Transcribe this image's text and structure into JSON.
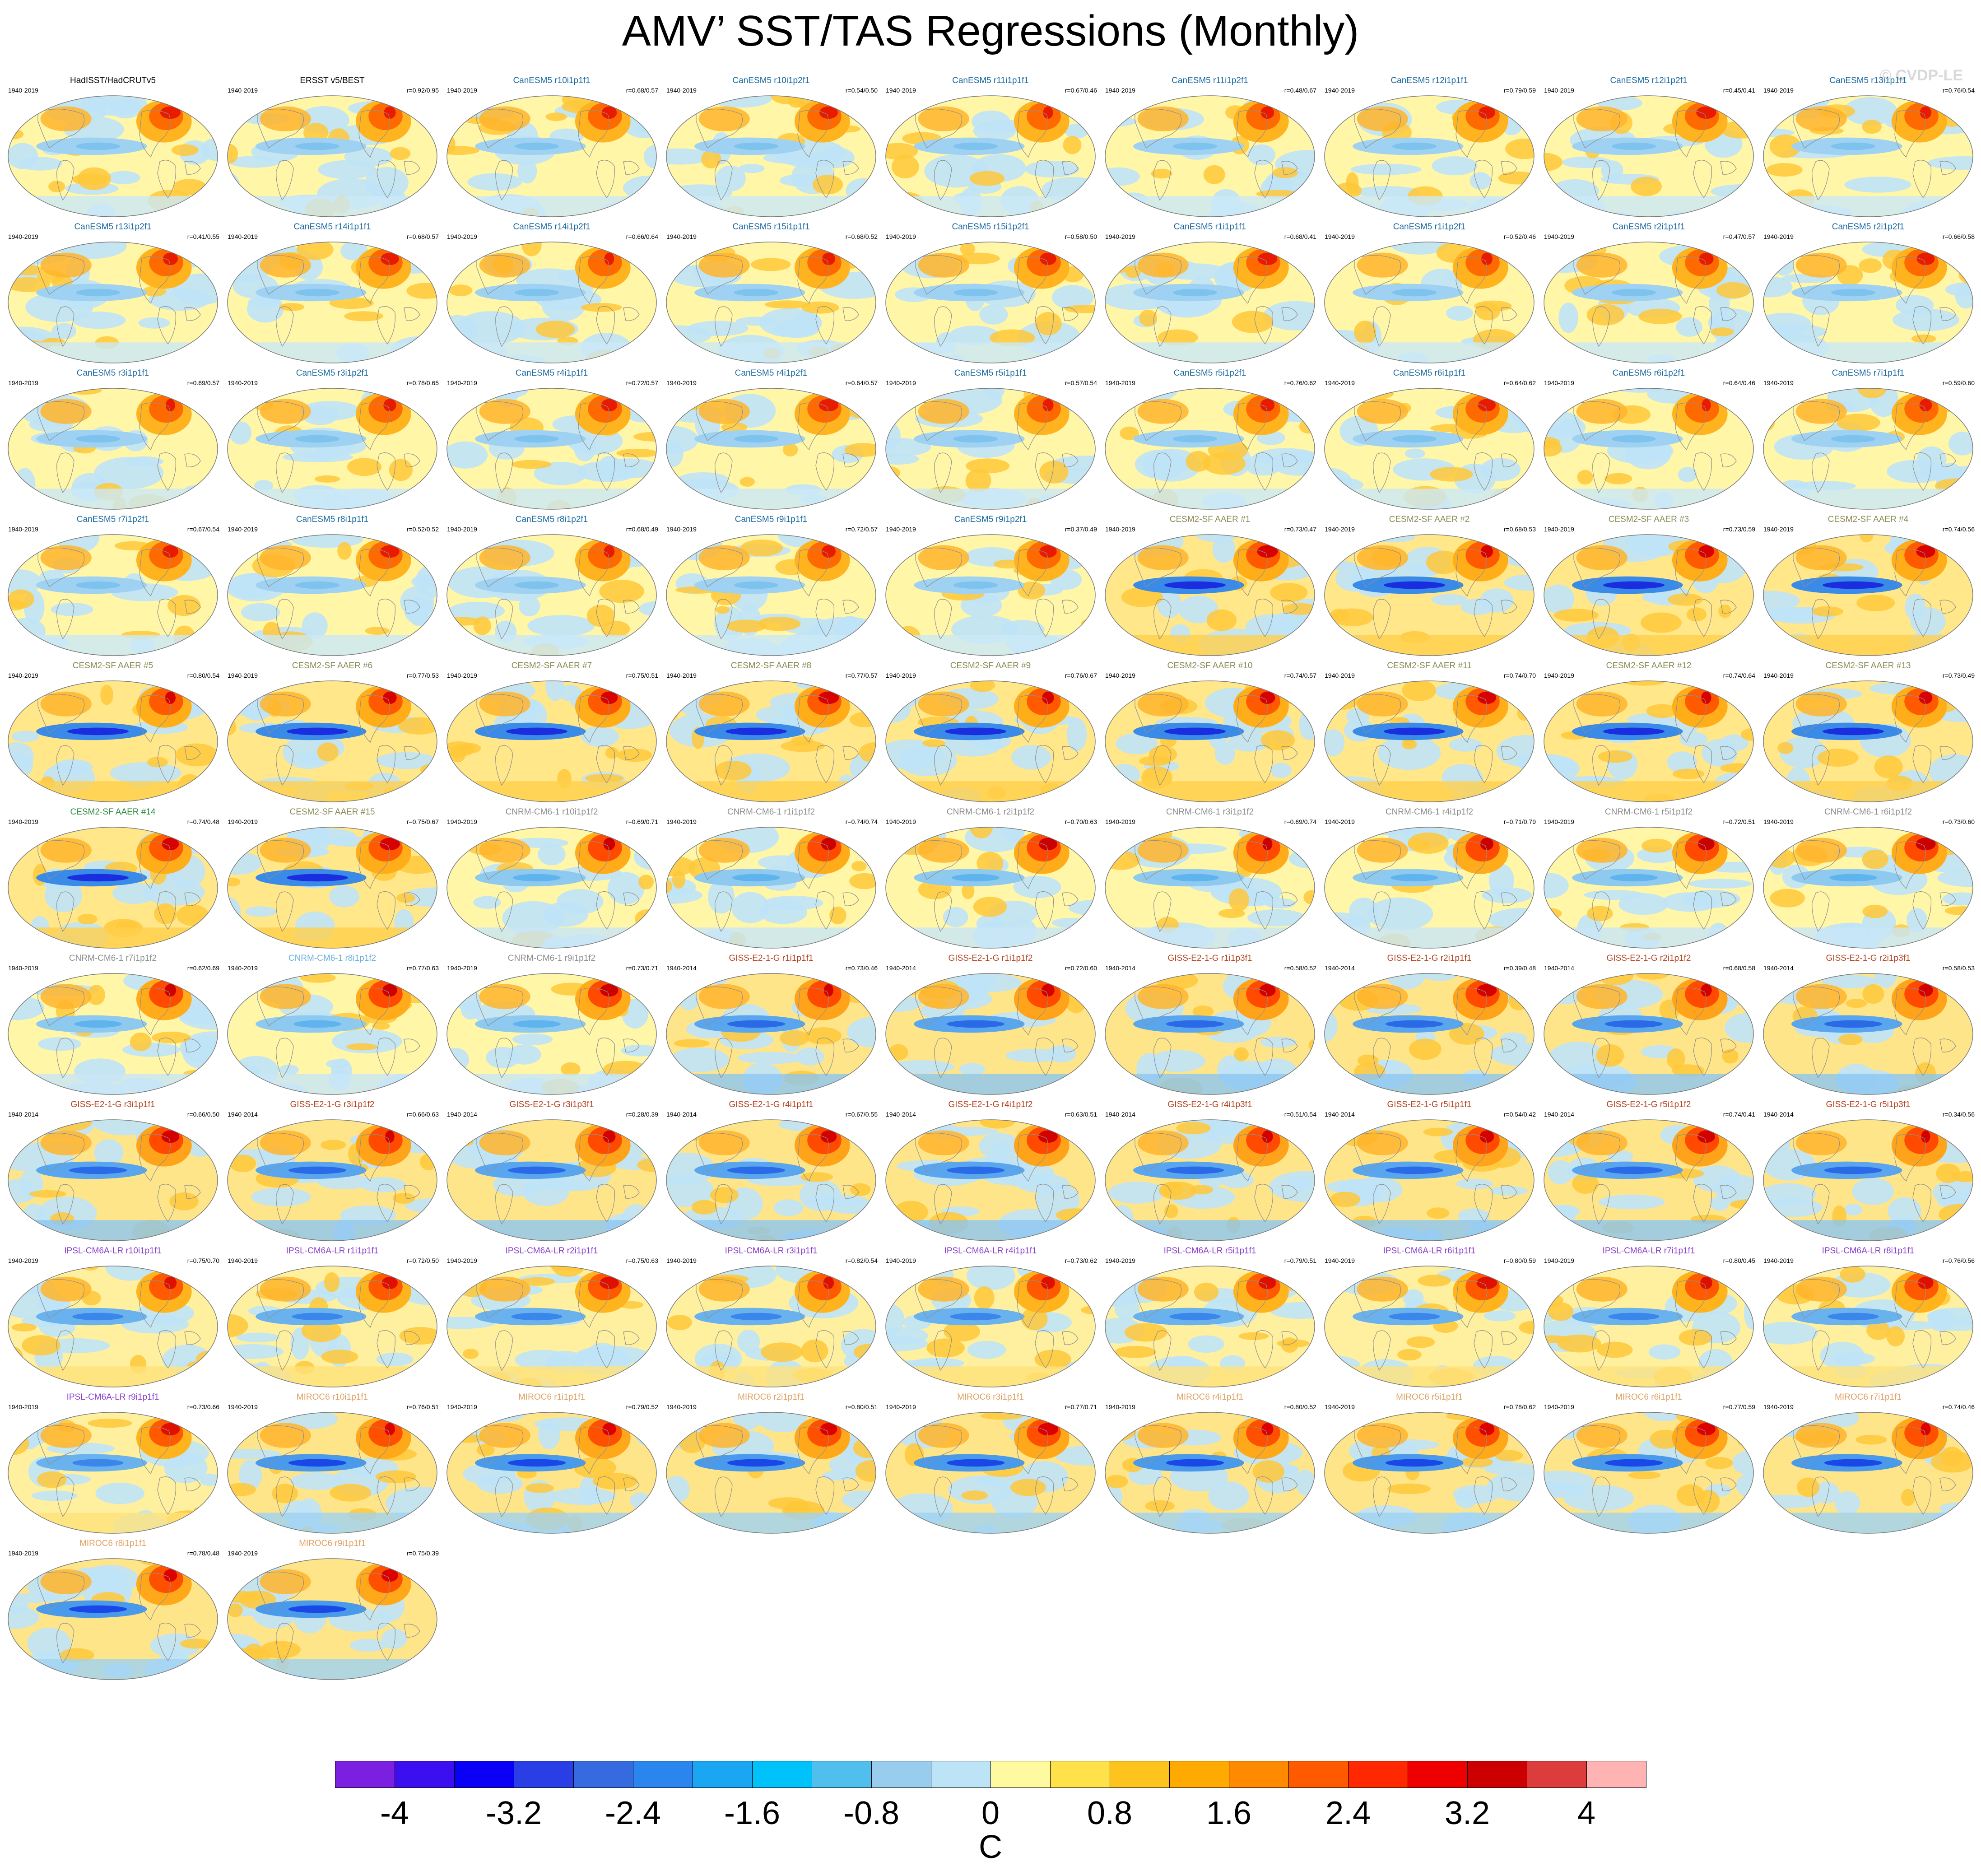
{
  "title": "AMV’ SST/TAS Regressions (Monthly)",
  "credit": "© CVDP-LE",
  "chart_data": {
    "type": "heatmap",
    "map_projection": "global-ellipse",
    "units": "C",
    "colorbar": {
      "colors": [
        "#7b1fe0",
        "#3c0ff0",
        "#0a00f5",
        "#2a3ee6",
        "#356ae0",
        "#2a86ee",
        "#1aa6f2",
        "#00c2fb",
        "#50bfee",
        "#98cdee",
        "#bde3f7",
        "#fffaa0",
        "#ffe14a",
        "#ffc31e",
        "#ffaa00",
        "#ff8a00",
        "#ff5a00",
        "#ff2800",
        "#ee0000",
        "#cc0000",
        "#dd3c3c",
        "#ffb3b3"
      ],
      "tick_labels": [
        "-4",
        "-3.2",
        "-2.4",
        "-1.6",
        "-0.8",
        "0",
        "0.8",
        "1.6",
        "2.4",
        "3.2",
        "4"
      ],
      "range": [
        -4.4,
        4.4
      ]
    },
    "panels": [
      {
        "name": "HadISST/HadCRUTv5",
        "years": "1940-2019",
        "corr": "",
        "color": "#000000",
        "style": "can"
      },
      {
        "name": "ERSST v5/BEST",
        "years": "1940-2019",
        "corr": "r=0.92/0.95",
        "color": "#000000",
        "style": "can"
      },
      {
        "name": "CanESM5 r10i1p1f1",
        "years": "1940-2019",
        "corr": "r=0.68/0.57",
        "color": "#1a6aa0",
        "style": "can"
      },
      {
        "name": "CanESM5 r10i1p2f1",
        "years": "1940-2019",
        "corr": "r=0.54/0.50",
        "color": "#1a6aa0",
        "style": "can"
      },
      {
        "name": "CanESM5 r11i1p1f1",
        "years": "1940-2019",
        "corr": "r=0.67/0.46",
        "color": "#1a6aa0",
        "style": "can"
      },
      {
        "name": "CanESM5 r11i1p2f1",
        "years": "1940-2019",
        "corr": "r=0.48/0.67",
        "color": "#1a6aa0",
        "style": "can"
      },
      {
        "name": "CanESM5 r12i1p1f1",
        "years": "1940-2019",
        "corr": "r=0.79/0.59",
        "color": "#1a6aa0",
        "style": "can"
      },
      {
        "name": "CanESM5 r12i1p2f1",
        "years": "1940-2019",
        "corr": "r=0.45/0.41",
        "color": "#1a6aa0",
        "style": "can"
      },
      {
        "name": "CanESM5 r13i1p1f1",
        "years": "1940-2019",
        "corr": "r=0.76/0.54",
        "color": "#1a6aa0",
        "style": "can"
      },
      {
        "name": "CanESM5 r13i1p2f1",
        "years": "1940-2019",
        "corr": "r=0.41/0.55",
        "color": "#1a6aa0",
        "style": "can"
      },
      {
        "name": "CanESM5 r14i1p1f1",
        "years": "1940-2019",
        "corr": "r=0.68/0.57",
        "color": "#1a6aa0",
        "style": "can"
      },
      {
        "name": "CanESM5 r14i1p2f1",
        "years": "1940-2019",
        "corr": "r=0.66/0.64",
        "color": "#1a6aa0",
        "style": "can"
      },
      {
        "name": "CanESM5 r15i1p1f1",
        "years": "1940-2019",
        "corr": "r=0.68/0.52",
        "color": "#1a6aa0",
        "style": "can"
      },
      {
        "name": "CanESM5 r15i1p2f1",
        "years": "1940-2019",
        "corr": "r=0.58/0.50",
        "color": "#1a6aa0",
        "style": "can"
      },
      {
        "name": "CanESM5 r1i1p1f1",
        "years": "1940-2019",
        "corr": "r=0.68/0.41",
        "color": "#1a6aa0",
        "style": "can"
      },
      {
        "name": "CanESM5 r1i1p2f1",
        "years": "1940-2019",
        "corr": "r=0.52/0.46",
        "color": "#1a6aa0",
        "style": "can"
      },
      {
        "name": "CanESM5 r2i1p1f1",
        "years": "1940-2019",
        "corr": "r=0.47/0.57",
        "color": "#1a6aa0",
        "style": "can"
      },
      {
        "name": "CanESM5 r2i1p2f1",
        "years": "1940-2019",
        "corr": "r=0.66/0.58",
        "color": "#1a6aa0",
        "style": "can"
      },
      {
        "name": "CanESM5 r3i1p1f1",
        "years": "1940-2019",
        "corr": "r=0.69/0.57",
        "color": "#1a6aa0",
        "style": "can"
      },
      {
        "name": "CanESM5 r3i1p2f1",
        "years": "1940-2019",
        "corr": "r=0.78/0.65",
        "color": "#1a6aa0",
        "style": "can"
      },
      {
        "name": "CanESM5 r4i1p1f1",
        "years": "1940-2019",
        "corr": "r=0.72/0.57",
        "color": "#1a6aa0",
        "style": "can"
      },
      {
        "name": "CanESM5 r4i1p2f1",
        "years": "1940-2019",
        "corr": "r=0.64/0.57",
        "color": "#1a6aa0",
        "style": "can"
      },
      {
        "name": "CanESM5 r5i1p1f1",
        "years": "1940-2019",
        "corr": "r=0.57/0.54",
        "color": "#1a6aa0",
        "style": "can"
      },
      {
        "name": "CanESM5 r5i1p2f1",
        "years": "1940-2019",
        "corr": "r=0.76/0.62",
        "color": "#1a6aa0",
        "style": "can"
      },
      {
        "name": "CanESM5 r6i1p1f1",
        "years": "1940-2019",
        "corr": "r=0.64/0.62",
        "color": "#1a6aa0",
        "style": "can"
      },
      {
        "name": "CanESM5 r6i1p2f1",
        "years": "1940-2019",
        "corr": "r=0.64/0.46",
        "color": "#1a6aa0",
        "style": "can"
      },
      {
        "name": "CanESM5 r7i1p1f1",
        "years": "1940-2019",
        "corr": "r=0.59/0.60",
        "color": "#1a6aa0",
        "style": "can"
      },
      {
        "name": "CanESM5 r7i1p2f1",
        "years": "1940-2019",
        "corr": "r=0.67/0.54",
        "color": "#1a6aa0",
        "style": "can"
      },
      {
        "name": "CanESM5 r8i1p1f1",
        "years": "1940-2019",
        "corr": "r=0.52/0.52",
        "color": "#1a6aa0",
        "style": "can"
      },
      {
        "name": "CanESM5 r8i1p2f1",
        "years": "1940-2019",
        "corr": "r=0.68/0.49",
        "color": "#1a6aa0",
        "style": "can"
      },
      {
        "name": "CanESM5 r9i1p1f1",
        "years": "1940-2019",
        "corr": "r=0.72/0.57",
        "color": "#1a6aa0",
        "style": "can"
      },
      {
        "name": "CanESM5 r9i1p2f1",
        "years": "1940-2019",
        "corr": "r=0.37/0.49",
        "color": "#1a6aa0",
        "style": "can"
      },
      {
        "name": "CESM2-SF AAER #1",
        "years": "1940-2019",
        "corr": "r=0.73/0.47",
        "color": "#8a8a55",
        "style": "cesm"
      },
      {
        "name": "CESM2-SF AAER #2",
        "years": "1940-2019",
        "corr": "r=0.68/0.53",
        "color": "#8a8a55",
        "style": "cesm"
      },
      {
        "name": "CESM2-SF AAER #3",
        "years": "1940-2019",
        "corr": "r=0.73/0.59",
        "color": "#8a8a55",
        "style": "cesm"
      },
      {
        "name": "CESM2-SF AAER #4",
        "years": "1940-2019",
        "corr": "r=0.74/0.56",
        "color": "#8a8a55",
        "style": "cesm"
      },
      {
        "name": "CESM2-SF AAER #5",
        "years": "1940-2019",
        "corr": "r=0.80/0.54",
        "color": "#8a8a55",
        "style": "cesm"
      },
      {
        "name": "CESM2-SF AAER #6",
        "years": "1940-2019",
        "corr": "r=0.77/0.53",
        "color": "#8a8a55",
        "style": "cesm"
      },
      {
        "name": "CESM2-SF AAER #7",
        "years": "1940-2019",
        "corr": "r=0.75/0.51",
        "color": "#8a8a55",
        "style": "cesm"
      },
      {
        "name": "CESM2-SF AAER #8",
        "years": "1940-2019",
        "corr": "r=0.77/0.57",
        "color": "#8a8a55",
        "style": "cesm"
      },
      {
        "name": "CESM2-SF AAER #9",
        "years": "1940-2019",
        "corr": "r=0.76/0.67",
        "color": "#8a8a55",
        "style": "cesm"
      },
      {
        "name": "CESM2-SF AAER #10",
        "years": "1940-2019",
        "corr": "r=0.74/0.57",
        "color": "#8a8a55",
        "style": "cesm"
      },
      {
        "name": "CESM2-SF AAER #11",
        "years": "1940-2019",
        "corr": "r=0.74/0.70",
        "color": "#8a8a55",
        "style": "cesm"
      },
      {
        "name": "CESM2-SF AAER #12",
        "years": "1940-2019",
        "corr": "r=0.74/0.64",
        "color": "#8a8a55",
        "style": "cesm"
      },
      {
        "name": "CESM2-SF AAER #13",
        "years": "1940-2019",
        "corr": "r=0.73/0.49",
        "color": "#8a8a55",
        "style": "cesm"
      },
      {
        "name": "CESM2-SF AAER #14",
        "years": "1940-2019",
        "corr": "r=0.74/0.48",
        "color": "#2e8b3c",
        "style": "cesm"
      },
      {
        "name": "CESM2-SF AAER #15",
        "years": "1940-2019",
        "corr": "r=0.75/0.67",
        "color": "#8a8a55",
        "style": "cesm"
      },
      {
        "name": "CNRM-CM6-1 r10i1p1f2",
        "years": "1940-2019",
        "corr": "r=0.69/0.71",
        "color": "#8c8c8c",
        "style": "cnrm"
      },
      {
        "name": "CNRM-CM6-1 r1i1p1f2",
        "years": "1940-2019",
        "corr": "r=0.74/0.74",
        "color": "#8c8c8c",
        "style": "cnrm"
      },
      {
        "name": "CNRM-CM6-1 r2i1p1f2",
        "years": "1940-2019",
        "corr": "r=0.70/0.63",
        "color": "#8c8c8c",
        "style": "cnrm"
      },
      {
        "name": "CNRM-CM6-1 r3i1p1f2",
        "years": "1940-2019",
        "corr": "r=0.69/0.74",
        "color": "#8c8c8c",
        "style": "cnrm"
      },
      {
        "name": "CNRM-CM6-1 r4i1p1f2",
        "years": "1940-2019",
        "corr": "r=0.71/0.79",
        "color": "#8c8c8c",
        "style": "cnrm"
      },
      {
        "name": "CNRM-CM6-1 r5i1p1f2",
        "years": "1940-2019",
        "corr": "r=0.72/0.51",
        "color": "#8c8c8c",
        "style": "cnrm"
      },
      {
        "name": "CNRM-CM6-1 r6i1p1f2",
        "years": "1940-2019",
        "corr": "r=0.73/0.60",
        "color": "#8c8c8c",
        "style": "cnrm"
      },
      {
        "name": "CNRM-CM6-1 r7i1p1f2",
        "years": "1940-2019",
        "corr": "r=0.62/0.69",
        "color": "#8c8c8c",
        "style": "cnrm"
      },
      {
        "name": "CNRM-CM6-1 r8i1p1f2",
        "years": "1940-2019",
        "corr": "r=0.77/0.63",
        "color": "#6aaedd",
        "style": "cnrm"
      },
      {
        "name": "CNRM-CM6-1 r9i1p1f2",
        "years": "1940-2019",
        "corr": "r=0.73/0.71",
        "color": "#8c8c8c",
        "style": "cnrm"
      },
      {
        "name": "GISS-E2-1-G r1i1p1f1",
        "years": "1940-2014",
        "corr": "r=0.73/0.46",
        "color": "#b5421e",
        "style": "giss"
      },
      {
        "name": "GISS-E2-1-G r1i1p1f2",
        "years": "1940-2014",
        "corr": "r=0.72/0.60",
        "color": "#b5421e",
        "style": "giss"
      },
      {
        "name": "GISS-E2-1-G r1i1p3f1",
        "years": "1940-2014",
        "corr": "r=0.58/0.52",
        "color": "#b5421e",
        "style": "giss"
      },
      {
        "name": "GISS-E2-1-G r2i1p1f1",
        "years": "1940-2014",
        "corr": "r=0.39/0.48",
        "color": "#b5421e",
        "style": "giss"
      },
      {
        "name": "GISS-E2-1-G r2i1p1f2",
        "years": "1940-2014",
        "corr": "r=0.68/0.58",
        "color": "#b5421e",
        "style": "giss"
      },
      {
        "name": "GISS-E2-1-G r2i1p3f1",
        "years": "1940-2014",
        "corr": "r=0.58/0.53",
        "color": "#b5421e",
        "style": "giss"
      },
      {
        "name": "GISS-E2-1-G r3i1p1f1",
        "years": "1940-2014",
        "corr": "r=0.66/0.50",
        "color": "#b5421e",
        "style": "giss"
      },
      {
        "name": "GISS-E2-1-G r3i1p1f2",
        "years": "1940-2014",
        "corr": "r=0.66/0.63",
        "color": "#b5421e",
        "style": "giss"
      },
      {
        "name": "GISS-E2-1-G r3i1p3f1",
        "years": "1940-2014",
        "corr": "r=0.28/0.39",
        "color": "#b5421e",
        "style": "giss"
      },
      {
        "name": "GISS-E2-1-G r4i1p1f1",
        "years": "1940-2014",
        "corr": "r=0.67/0.55",
        "color": "#b5421e",
        "style": "giss"
      },
      {
        "name": "GISS-E2-1-G r4i1p1f2",
        "years": "1940-2014",
        "corr": "r=0.63/0.51",
        "color": "#b5421e",
        "style": "giss"
      },
      {
        "name": "GISS-E2-1-G r4i1p3f1",
        "years": "1940-2014",
        "corr": "r=0.51/0.54",
        "color": "#b5421e",
        "style": "giss"
      },
      {
        "name": "GISS-E2-1-G r5i1p1f1",
        "years": "1940-2014",
        "corr": "r=0.54/0.42",
        "color": "#b5421e",
        "style": "giss"
      },
      {
        "name": "GISS-E2-1-G r5i1p1f2",
        "years": "1940-2014",
        "corr": "r=0.74/0.41",
        "color": "#b5421e",
        "style": "giss"
      },
      {
        "name": "GISS-E2-1-G r5i1p3f1",
        "years": "1940-2014",
        "corr": "r=0.34/0.56",
        "color": "#b5421e",
        "style": "giss"
      },
      {
        "name": "IPSL-CM6A-LR r10i1p1f1",
        "years": "1940-2019",
        "corr": "r=0.75/0.70",
        "color": "#8a3ccc",
        "style": "ipsl"
      },
      {
        "name": "IPSL-CM6A-LR r1i1p1f1",
        "years": "1940-2019",
        "corr": "r=0.72/0.50",
        "color": "#8a3ccc",
        "style": "ipsl"
      },
      {
        "name": "IPSL-CM6A-LR r2i1p1f1",
        "years": "1940-2019",
        "corr": "r=0.75/0.63",
        "color": "#8a3ccc",
        "style": "ipsl"
      },
      {
        "name": "IPSL-CM6A-LR r3i1p1f1",
        "years": "1940-2019",
        "corr": "r=0.82/0.54",
        "color": "#8a3ccc",
        "style": "ipsl"
      },
      {
        "name": "IPSL-CM6A-LR r4i1p1f1",
        "years": "1940-2019",
        "corr": "r=0.73/0.62",
        "color": "#8a3ccc",
        "style": "ipsl"
      },
      {
        "name": "IPSL-CM6A-LR r5i1p1f1",
        "years": "1940-2019",
        "corr": "r=0.79/0.51",
        "color": "#8a3ccc",
        "style": "ipsl"
      },
      {
        "name": "IPSL-CM6A-LR r6i1p1f1",
        "years": "1940-2019",
        "corr": "r=0.80/0.59",
        "color": "#8a3ccc",
        "style": "ipsl"
      },
      {
        "name": "IPSL-CM6A-LR r7i1p1f1",
        "years": "1940-2019",
        "corr": "r=0.80/0.45",
        "color": "#8a3ccc",
        "style": "ipsl"
      },
      {
        "name": "IPSL-CM6A-LR r8i1p1f1",
        "years": "1940-2019",
        "corr": "r=0.76/0.56",
        "color": "#8a3ccc",
        "style": "ipsl"
      },
      {
        "name": "IPSL-CM6A-LR r9i1p1f1",
        "years": "1940-2019",
        "corr": "r=0.73/0.66",
        "color": "#8a3ccc",
        "style": "ipsl"
      },
      {
        "name": "MIROC6 r10i1p1f1",
        "years": "1940-2019",
        "corr": "r=0.76/0.51",
        "color": "#e0a060",
        "style": "miroc"
      },
      {
        "name": "MIROC6 r1i1p1f1",
        "years": "1940-2019",
        "corr": "r=0.79/0.52",
        "color": "#e0a060",
        "style": "miroc"
      },
      {
        "name": "MIROC6 r2i1p1f1",
        "years": "1940-2019",
        "corr": "r=0.80/0.51",
        "color": "#e0a060",
        "style": "miroc"
      },
      {
        "name": "MIROC6 r3i1p1f1",
        "years": "1940-2019",
        "corr": "r=0.77/0.71",
        "color": "#e0a060",
        "style": "miroc"
      },
      {
        "name": "MIROC6 r4i1p1f1",
        "years": "1940-2019",
        "corr": "r=0.80/0.52",
        "color": "#e0a060",
        "style": "miroc"
      },
      {
        "name": "MIROC6 r5i1p1f1",
        "years": "1940-2019",
        "corr": "r=0.78/0.62",
        "color": "#e0a060",
        "style": "miroc"
      },
      {
        "name": "MIROC6 r6i1p1f1",
        "years": "1940-2019",
        "corr": "r=0.77/0.59",
        "color": "#e0a060",
        "style": "miroc"
      },
      {
        "name": "MIROC6 r7i1p1f1",
        "years": "1940-2019",
        "corr": "r=0.74/0.46",
        "color": "#e0a060",
        "style": "miroc"
      },
      {
        "name": "MIROC6 r8i1p1f1",
        "years": "1940-2019",
        "corr": "r=0.78/0.48",
        "color": "#e0a060",
        "style": "miroc"
      },
      {
        "name": "MIROC6 r9i1p1f1",
        "years": "1940-2019",
        "corr": "r=0.75/0.39",
        "color": "#e0a060",
        "style": "miroc"
      }
    ]
  }
}
